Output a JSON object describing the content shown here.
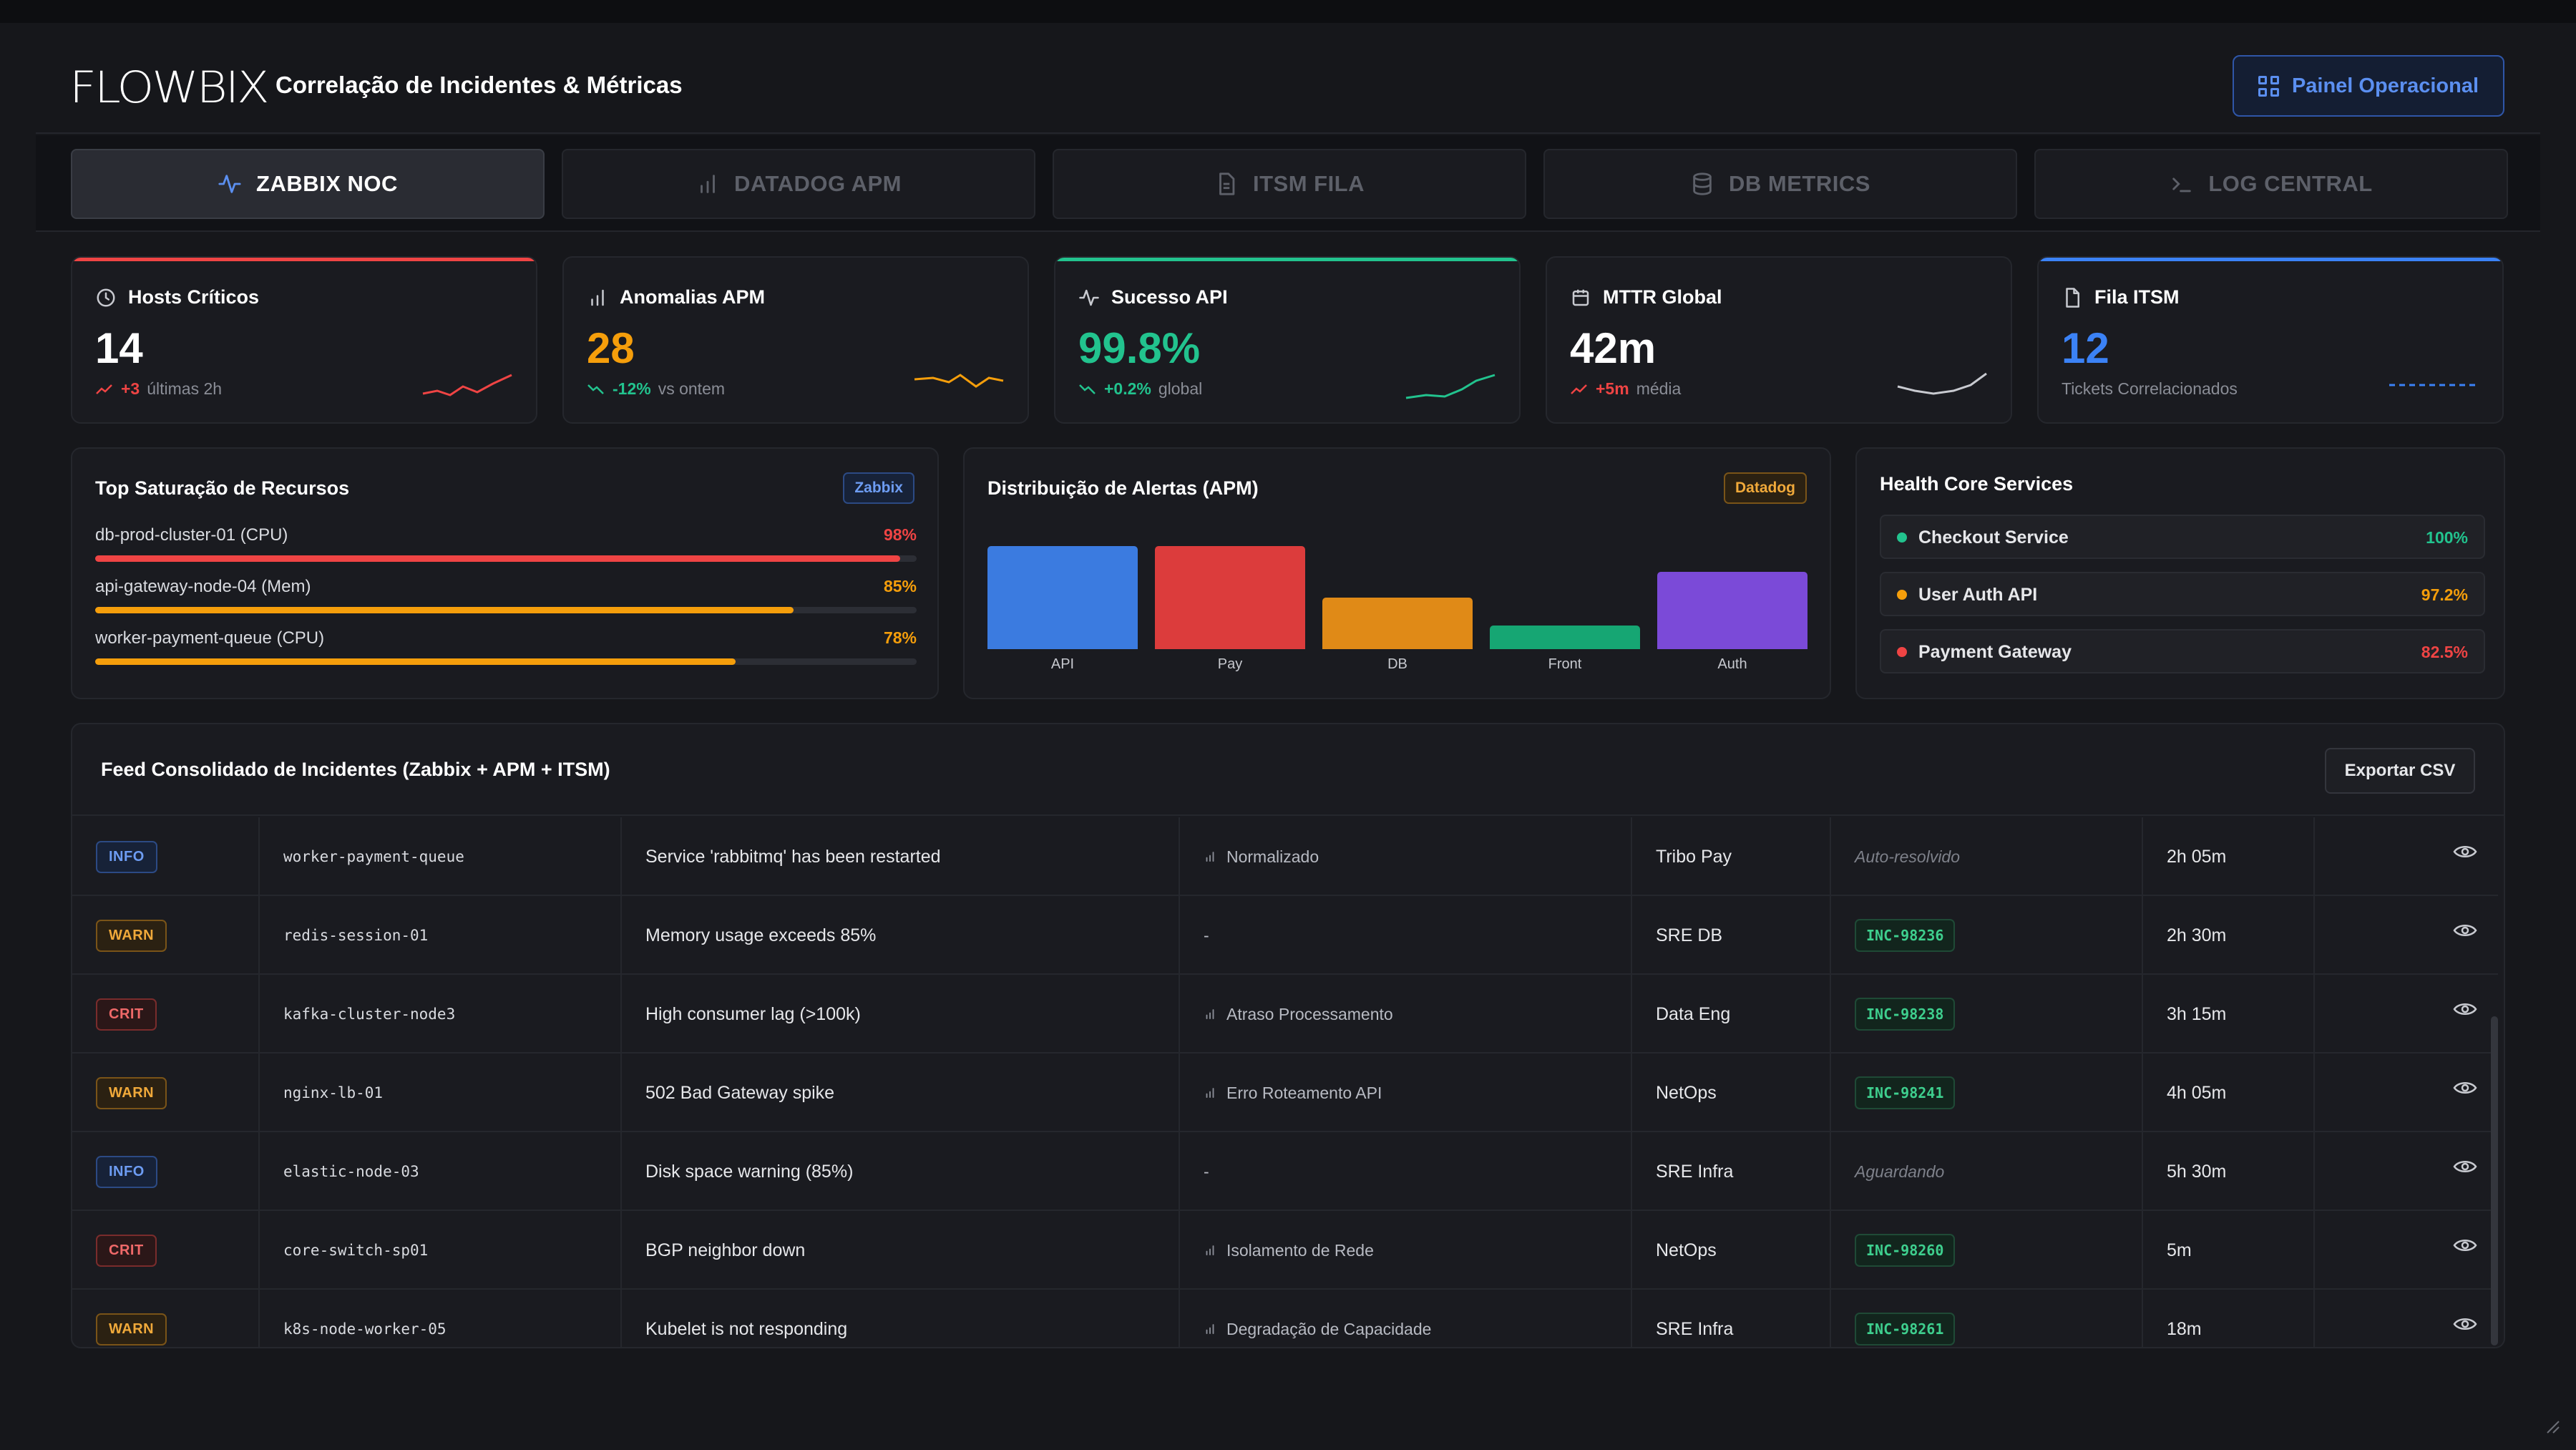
{
  "app": {
    "logo": "FLOWBIX",
    "title": "Correlação de Incidentes & Métricas",
    "panel_button": "Painel Operacional"
  },
  "tabs": [
    {
      "label": "ZABBIX NOC",
      "icon": "activity-icon",
      "active": true
    },
    {
      "label": "DATADOG APM",
      "icon": "bar-chart-icon",
      "active": false
    },
    {
      "label": "ITSM FILA",
      "icon": "document-icon",
      "active": false
    },
    {
      "label": "DB METRICS",
      "icon": "database-icon",
      "active": false
    },
    {
      "label": "LOG CENTRAL",
      "icon": "terminal-icon",
      "active": false
    }
  ],
  "cards": [
    {
      "title": "Hosts Críticos",
      "value": "14",
      "delta": "+3",
      "sub": "últimas 2h",
      "color": "#ffffff",
      "accent": "#ef4444",
      "delta_color": "#ef4444"
    },
    {
      "title": "Anomalias APM",
      "value": "28",
      "delta": "-12%",
      "sub": "vs ontem",
      "color": "#f59e0b",
      "accent": "",
      "delta_color": "#22c38e"
    },
    {
      "title": "Sucesso API",
      "value": "99.8%",
      "delta": "+0.2%",
      "sub": "global",
      "color": "#22c38e",
      "accent": "#22c38e",
      "delta_color": "#22c38e"
    },
    {
      "title": "MTTR Global",
      "value": "42m",
      "delta": "+5m",
      "sub": "média",
      "color": "#ffffff",
      "accent": "",
      "delta_color": "#ef4444"
    },
    {
      "title": "Fila ITSM",
      "value": "12",
      "delta": "",
      "sub": "Tickets Correlacionados",
      "color": "#3b82f6",
      "accent": "#3b82f6",
      "delta_color": ""
    }
  ],
  "saturation": {
    "title": "Top Saturação de Recursos",
    "badge": "Zabbix",
    "items": [
      {
        "label": "db-prod-cluster-01 (CPU)",
        "pct": "98%",
        "value": 98,
        "color": "#ef4444"
      },
      {
        "label": "api-gateway-node-04 (Mem)",
        "pct": "85%",
        "value": 85,
        "color": "#f59e0b"
      },
      {
        "label": "worker-payment-queue (CPU)",
        "pct": "78%",
        "value": 78,
        "color": "#f59e0b"
      }
    ]
  },
  "alerts_chart": {
    "title": "Distribuição de Alertas (APM)",
    "badge": "Datadog",
    "chart_data": {
      "type": "bar",
      "categories": [
        "API",
        "Pay",
        "DB",
        "Front",
        "Auth"
      ],
      "values": [
        100,
        100,
        50,
        23,
        75
      ],
      "colors": [
        "#3b7be0",
        "#dc3c3c",
        "#e08a17",
        "#16a673",
        "#7b4ad8"
      ]
    }
  },
  "health": {
    "title": "Health Core Services",
    "items": [
      {
        "name": "Checkout Service",
        "value": "100%",
        "color": "#22c38e"
      },
      {
        "name": "User Auth API",
        "value": "97.2%",
        "color": "#f59e0b"
      },
      {
        "name": "Payment Gateway",
        "value": "82.5%",
        "color": "#ef4444"
      }
    ]
  },
  "feed": {
    "title": "Feed Consolidado de Incidentes (Zabbix + APM + ITSM)",
    "export_label": "Exportar CSV",
    "rows": [
      {
        "sev": "INFO",
        "host": "worker-payment-queue",
        "msg": "Service 'rabbitmq' has been restarted",
        "impact": "Normalizado",
        "team": "Tribo Pay",
        "itsm": "Auto-resolvido",
        "itsm_type": "text",
        "time": "2h 05m"
      },
      {
        "sev": "WARN",
        "host": "redis-session-01",
        "msg": "Memory usage exceeds 85%",
        "impact": "-",
        "team": "SRE DB",
        "itsm": "INC-98236",
        "itsm_type": "inc",
        "time": "2h 30m"
      },
      {
        "sev": "CRIT",
        "host": "kafka-cluster-node3",
        "msg": "High consumer lag (>100k)",
        "impact": "Atraso Processamento",
        "team": "Data Eng",
        "itsm": "INC-98238",
        "itsm_type": "inc",
        "time": "3h 15m"
      },
      {
        "sev": "WARN",
        "host": "nginx-lb-01",
        "msg": "502 Bad Gateway spike",
        "impact": "Erro Roteamento API",
        "team": "NetOps",
        "itsm": "INC-98241",
        "itsm_type": "inc",
        "time": "4h 05m"
      },
      {
        "sev": "INFO",
        "host": "elastic-node-03",
        "msg": "Disk space warning (85%)",
        "impact": "-",
        "team": "SRE Infra",
        "itsm": "Aguardando",
        "itsm_type": "text",
        "time": "5h 30m"
      },
      {
        "sev": "CRIT",
        "host": "core-switch-sp01",
        "msg": "BGP neighbor down",
        "impact": "Isolamento de Rede",
        "team": "NetOps",
        "itsm": "INC-98260",
        "itsm_type": "inc",
        "time": "5m"
      },
      {
        "sev": "WARN",
        "host": "k8s-node-worker-05",
        "msg": "Kubelet is not responding",
        "impact": "Degradação de Capacidade",
        "team": "SRE Infra",
        "itsm": "INC-98261",
        "itsm_type": "inc",
        "time": "18m"
      }
    ]
  }
}
